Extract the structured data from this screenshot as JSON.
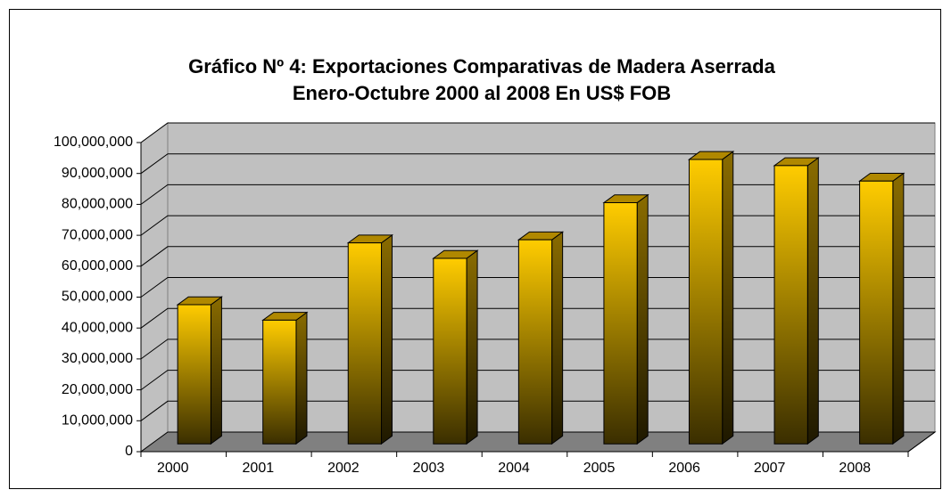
{
  "chart_data": {
    "type": "bar3d",
    "title": [
      "Gráfico Nº 4: Exportaciones Comparativas de Madera Aserrada",
      "Enero-Octubre 2000 al 2008 En US$ FOB"
    ],
    "categories": [
      "2000",
      "2001",
      "2002",
      "2003",
      "2004",
      "2005",
      "2006",
      "2007",
      "2008"
    ],
    "values": [
      45000000,
      40000000,
      65000000,
      60000000,
      66000000,
      78000000,
      92000000,
      90000000,
      85000000
    ],
    "color": "#ffcc00",
    "ylim": [
      0,
      100000000
    ],
    "yticks": [
      0,
      {
        "value": 10000000,
        "label": "10,000,000"
      },
      {
        "value": 20000000,
        "label": "20,000,000"
      },
      {
        "value": 30000000,
        "label": "30,000,000"
      },
      {
        "value": 40000000,
        "label": "40,000,000"
      },
      {
        "value": 50000000,
        "label": "50,000,000"
      },
      {
        "value": 60000000,
        "label": "60,000,000"
      },
      {
        "value": 70000000,
        "label": "70,000,000"
      },
      {
        "value": 80000000,
        "label": "80,000,000"
      },
      {
        "value": 90000000,
        "label": "90,000,000"
      },
      {
        "value": 100000000,
        "label": "100,000,000"
      }
    ],
    "grid": true
  }
}
